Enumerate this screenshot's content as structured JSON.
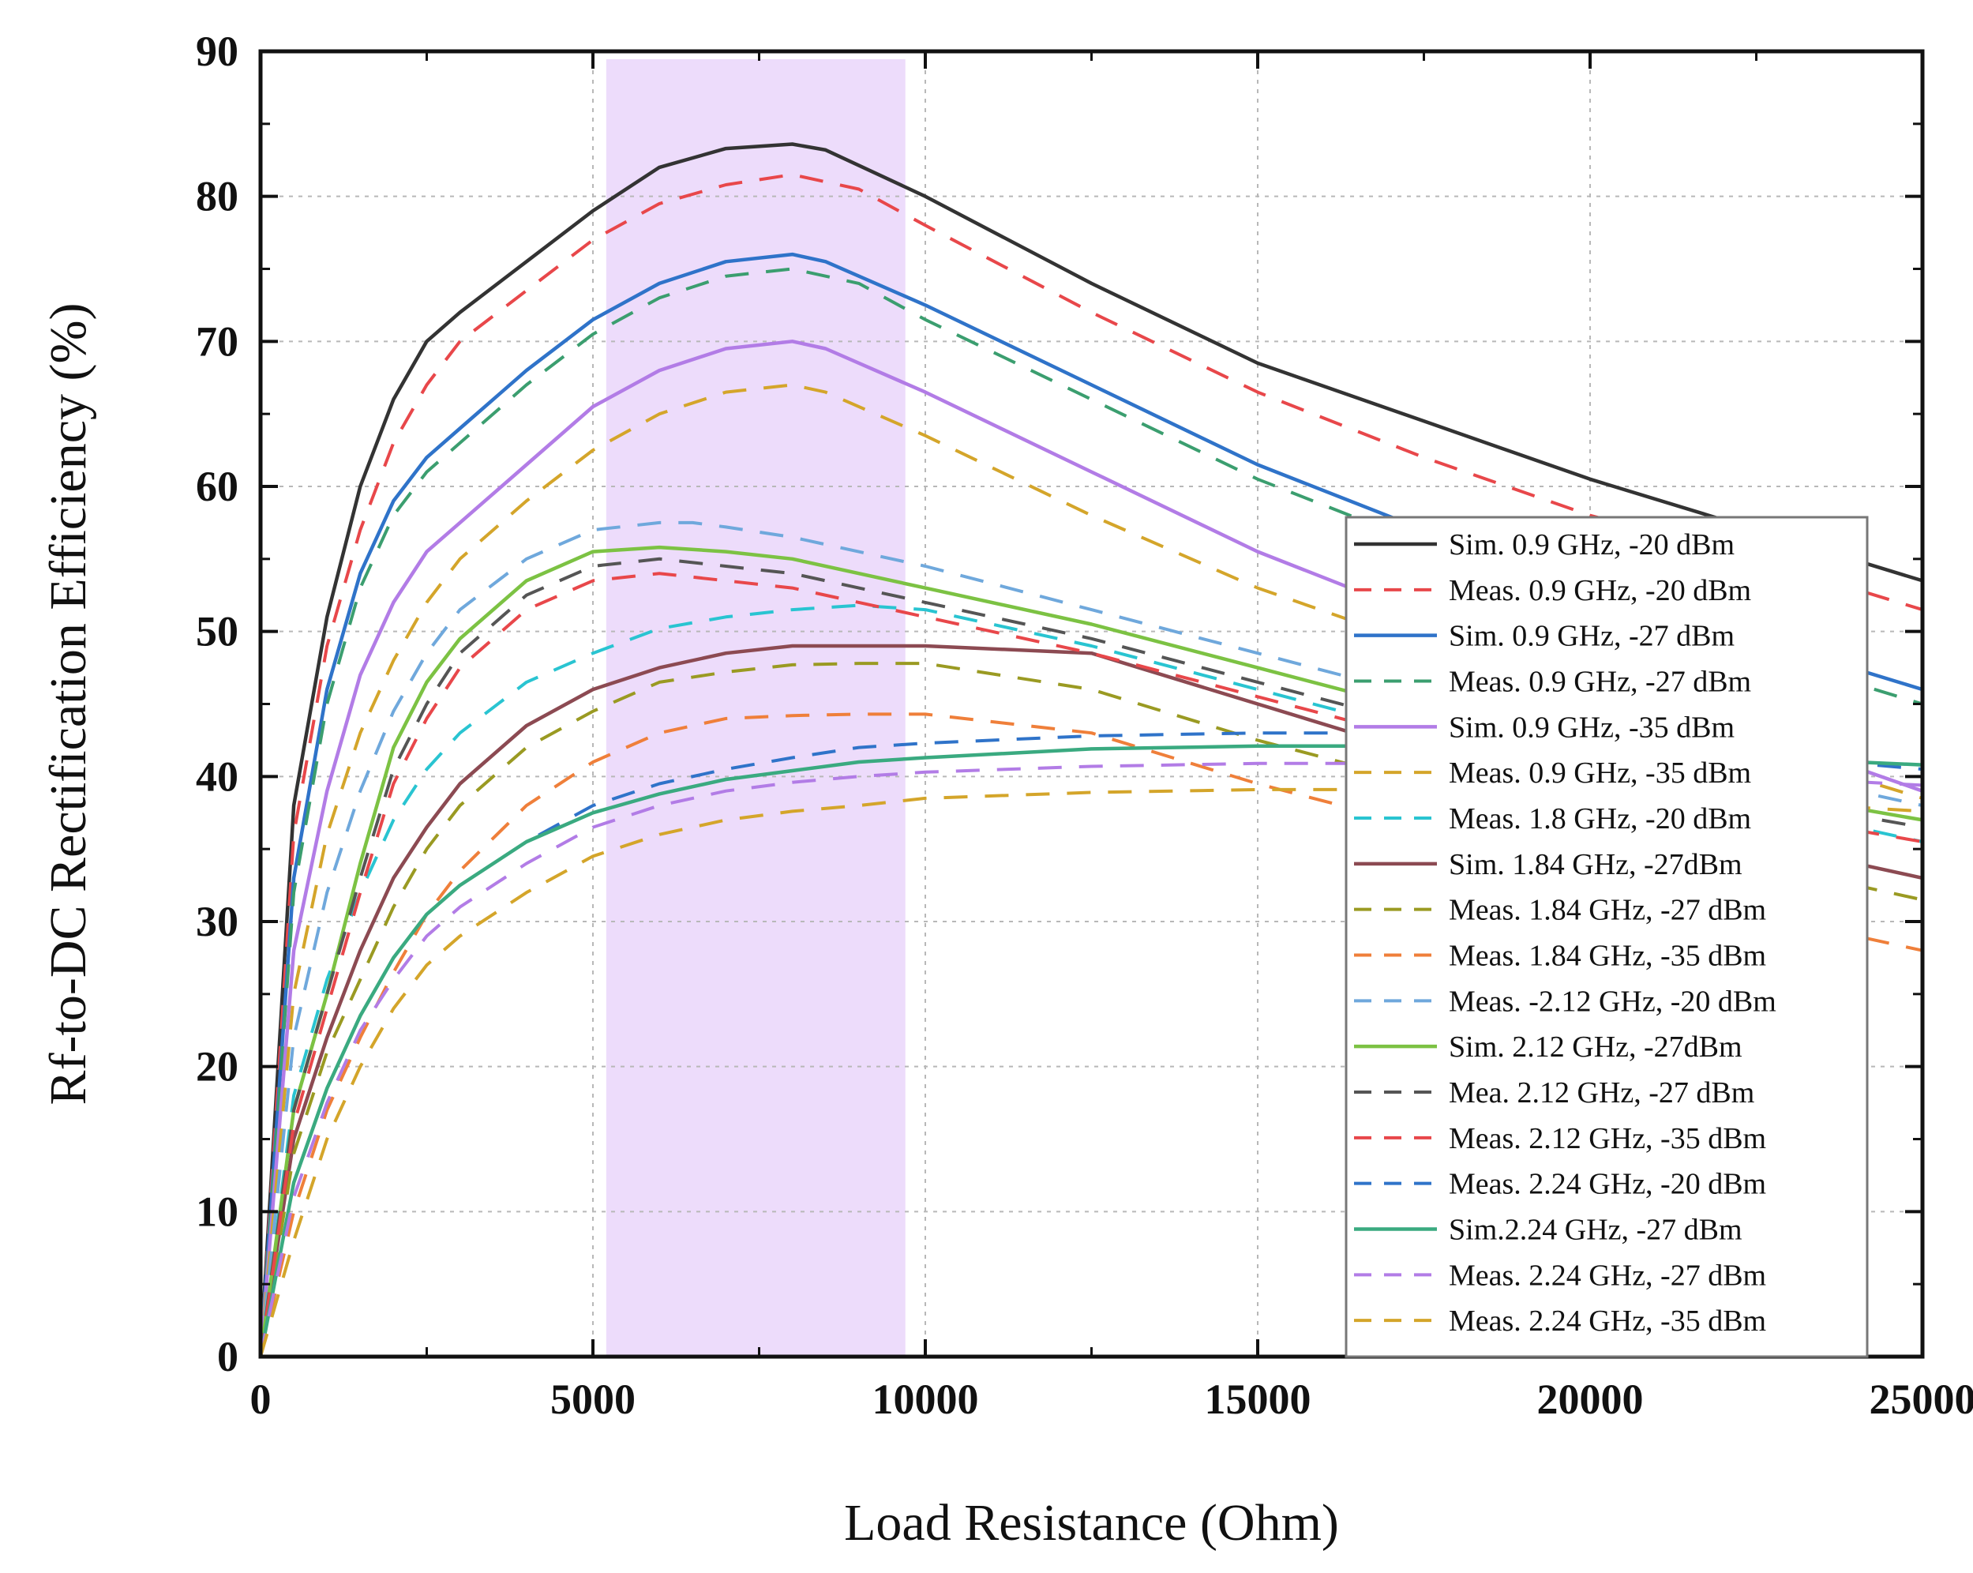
{
  "chart_data": {
    "type": "line",
    "title": "",
    "xlabel": "Load Resistance (Ohm)",
    "ylabel": "Rf-to-DC Rectification Efficiency (%)",
    "xlim": [
      0,
      25000
    ],
    "ylim": [
      0,
      90
    ],
    "xticks": [
      0,
      5000,
      10000,
      15000,
      20000,
      25000
    ],
    "yticks": [
      0,
      10,
      20,
      30,
      40,
      50,
      60,
      70,
      80,
      90
    ],
    "grid": true,
    "legend_position": "right",
    "highlight_band": {
      "x_start": 5200,
      "x_end": 9700,
      "color": "#eddcfb"
    },
    "series": [
      {
        "name": "Sim. 0.9 GHz, -20 dBm",
        "style": "solid",
        "color": "#333333",
        "x": [
          0,
          500,
          1000,
          1500,
          2000,
          2500,
          3000,
          4000,
          5000,
          6000,
          7000,
          8000,
          8500,
          10000,
          12500,
          15000,
          17500,
          20000,
          22500,
          25000
        ],
        "y": [
          0,
          38,
          51,
          60,
          66,
          70,
          72,
          75.5,
          79,
          82,
          83.3,
          83.6,
          83.2,
          80,
          74,
          68.5,
          64.5,
          60.5,
          57,
          53.5
        ]
      },
      {
        "name": "Meas. 0.9 GHz, -20 dBm",
        "style": "dashed",
        "color": "#e8474a",
        "x": [
          0,
          500,
          1000,
          1500,
          2000,
          2500,
          3000,
          4000,
          5000,
          6000,
          7000,
          8000,
          9000,
          10000,
          12500,
          15000,
          17500,
          20000,
          22500,
          25000
        ],
        "y": [
          0,
          36,
          49,
          57,
          63,
          67,
          70,
          73.5,
          77,
          79.5,
          80.8,
          81.5,
          80.5,
          78,
          72,
          66.5,
          62,
          58,
          55,
          51.5
        ]
      },
      {
        "name": "Sim. 0.9 GHz, -27 dBm",
        "style": "solid",
        "color": "#2f73c9",
        "x": [
          0,
          500,
          1000,
          1500,
          2000,
          2500,
          3000,
          4000,
          5000,
          6000,
          7000,
          8000,
          8500,
          10000,
          12500,
          15000,
          17500,
          20000,
          22500,
          25000
        ],
        "y": [
          0,
          33,
          46,
          54,
          59,
          62,
          64,
          68,
          71.5,
          74,
          75.5,
          76,
          75.5,
          72.5,
          67,
          61.5,
          57,
          53,
          49.5,
          46
        ]
      },
      {
        "name": "Meas. 0.9 GHz, -27 dBm",
        "style": "dashed",
        "color": "#3b9e6f",
        "x": [
          0,
          500,
          1000,
          1500,
          2000,
          2500,
          3000,
          4000,
          5000,
          6000,
          7000,
          8000,
          9000,
          10000,
          12500,
          15000,
          17500,
          20000,
          22500,
          25000
        ],
        "y": [
          0,
          32,
          45,
          53,
          58,
          61,
          63,
          67,
          70.5,
          73,
          74.5,
          75,
          74,
          71.5,
          66,
          60.5,
          56,
          52,
          48.5,
          45
        ]
      },
      {
        "name": "Sim. 0.9 GHz, -35 dBm",
        "style": "solid",
        "color": "#b27ce6",
        "x": [
          0,
          500,
          1000,
          1500,
          2000,
          2500,
          3000,
          4000,
          5000,
          6000,
          7000,
          8000,
          8500,
          10000,
          12500,
          15000,
          17500,
          20000,
          22500,
          25000
        ],
        "y": [
          0,
          28,
          39,
          47,
          52,
          55.5,
          57.5,
          61.5,
          65.5,
          68,
          69.5,
          70,
          69.5,
          66.5,
          61,
          55.5,
          51,
          47,
          43,
          39
        ]
      },
      {
        "name": "Meas. 0.9 GHz, -35 dBm",
        "style": "dashed",
        "color": "#d4a52a",
        "x": [
          0,
          500,
          1000,
          1500,
          2000,
          2500,
          3000,
          4000,
          5000,
          6000,
          7000,
          8000,
          8500,
          10000,
          12500,
          15000,
          17500,
          20000,
          22500,
          25000
        ],
        "y": [
          0,
          25,
          36,
          43,
          48,
          52,
          55,
          59,
          62.5,
          65,
          66.5,
          67,
          66.5,
          63.5,
          58,
          53,
          49,
          45.5,
          42,
          38.5
        ]
      },
      {
        "name": "Meas. 1.8 GHz, -20 dBm",
        "style": "dashed",
        "color": "#29c4d1",
        "x": [
          0,
          500,
          1000,
          1500,
          2000,
          2500,
          3000,
          4000,
          5000,
          6000,
          7000,
          8000,
          9000,
          10000,
          12500,
          15000,
          17500,
          20000,
          22500,
          25000
        ],
        "y": [
          0,
          18,
          26,
          32,
          37,
          40.5,
          43,
          46.5,
          48.5,
          50.2,
          51,
          51.5,
          51.8,
          51.5,
          49,
          46,
          43,
          40.5,
          38,
          35.5
        ]
      },
      {
        "name": "Sim. 1.84 GHz, -27dBm",
        "style": "solid",
        "color": "#8c4a52",
        "x": [
          0,
          500,
          1000,
          1500,
          2000,
          2500,
          3000,
          4000,
          5000,
          6000,
          7000,
          8000,
          9000,
          10000,
          12500,
          15000,
          17500,
          20000,
          22500,
          25000
        ],
        "y": [
          0,
          15,
          22,
          28,
          33,
          36.5,
          39.5,
          43.5,
          46,
          47.5,
          48.5,
          49,
          49,
          49,
          48.5,
          45,
          41.5,
          38.5,
          35.5,
          33
        ]
      },
      {
        "name": "Meas. 1.84 GHz, -27 dBm",
        "style": "dashed",
        "color": "#9a9a22",
        "x": [
          0,
          500,
          1000,
          1500,
          2000,
          2500,
          3000,
          4000,
          5000,
          6000,
          7000,
          8000,
          9000,
          10000,
          12500,
          15000,
          17500,
          20000,
          22500,
          25000
        ],
        "y": [
          0,
          14,
          21,
          26,
          31,
          35,
          38,
          42,
          44.5,
          46.5,
          47.2,
          47.7,
          47.8,
          47.8,
          46,
          42.5,
          39.5,
          36.5,
          34,
          31.5
        ]
      },
      {
        "name": "Meas. 1.84 GHz, -35 dBm",
        "style": "dashed",
        "color": "#ef7f3a",
        "x": [
          0,
          500,
          1000,
          1500,
          2000,
          2500,
          3000,
          4000,
          5000,
          6000,
          7000,
          8000,
          9000,
          10000,
          12500,
          15000,
          17500,
          20000,
          22500,
          25000
        ],
        "y": [
          0,
          10,
          17,
          22,
          26.5,
          30.5,
          33.5,
          38,
          41,
          43,
          44,
          44.2,
          44.3,
          44.3,
          43,
          39.5,
          36.5,
          33,
          30.5,
          28
        ]
      },
      {
        "name": "Meas. -2.12 GHz, -20 dBm",
        "style": "dashed",
        "color": "#6fa8dc",
        "x": [
          0,
          500,
          1000,
          1500,
          2000,
          2500,
          3000,
          4000,
          5000,
          6000,
          6500,
          7000,
          8000,
          10000,
          12500,
          15000,
          17500,
          20000,
          22500,
          25000
        ],
        "y": [
          0,
          22,
          32,
          39,
          44.5,
          48.5,
          51.5,
          55,
          57,
          57.5,
          57.5,
          57.2,
          56.5,
          54.5,
          51.5,
          48.5,
          45.5,
          43,
          40.5,
          38
        ]
      },
      {
        "name": "Sim. 2.12 GHz, -27dBm",
        "style": "solid",
        "color": "#7cc243",
        "x": [
          0,
          500,
          1000,
          1500,
          2000,
          2500,
          3000,
          4000,
          5000,
          6000,
          7000,
          8000,
          9000,
          10000,
          12500,
          15000,
          17500,
          20000,
          22500,
          25000
        ],
        "y": [
          0,
          17,
          25,
          34,
          42,
          46.5,
          49.5,
          53.5,
          55.5,
          55.8,
          55.5,
          55,
          54,
          53,
          50.5,
          47.5,
          44.5,
          41.5,
          39,
          37
        ]
      },
      {
        "name": "Mea. 2.12 GHz, -27 dBm",
        "style": "dashed",
        "color": "#555555",
        "x": [
          0,
          500,
          1000,
          1500,
          2000,
          2500,
          3000,
          4000,
          5000,
          6000,
          7000,
          8000,
          9000,
          10000,
          12500,
          15000,
          17500,
          20000,
          22500,
          25000
        ],
        "y": [
          0,
          17,
          25,
          33,
          40.5,
          45,
          48.5,
          52.5,
          54.5,
          55,
          54.5,
          54,
          53,
          52,
          49.5,
          46.5,
          43.5,
          40.5,
          38.5,
          36.5
        ]
      },
      {
        "name": "Meas. 2.12 GHz, -35 dBm",
        "style": "dashed",
        "color": "#e8474a",
        "x": [
          0,
          500,
          1000,
          1500,
          2000,
          2500,
          3000,
          4000,
          5000,
          6000,
          7000,
          8000,
          9000,
          10000,
          12500,
          15000,
          17500,
          20000,
          22500,
          25000
        ],
        "y": [
          0,
          16,
          24,
          32,
          39.5,
          44,
          47.5,
          51.5,
          53.5,
          54,
          53.5,
          53,
          52,
          51,
          48.5,
          45.5,
          42.5,
          39.5,
          37.5,
          35.5
        ]
      },
      {
        "name": "Meas. 2.24 GHz, -20 dBm",
        "style": "dashed",
        "color": "#2f73c9",
        "x": [
          0,
          500,
          1000,
          1500,
          2000,
          2500,
          3000,
          4000,
          5000,
          6000,
          7000,
          8000,
          9000,
          10000,
          12500,
          15000,
          17500,
          20000,
          22500,
          25000
        ],
        "y": [
          0,
          12,
          18.5,
          23.5,
          27.5,
          30.5,
          32.5,
          35.5,
          38,
          39.5,
          40.5,
          41.3,
          42,
          42.3,
          42.8,
          43,
          43,
          42.5,
          41.5,
          40.5
        ]
      },
      {
        "name": "Sim.2.24 GHz, -27 dBm",
        "style": "solid",
        "color": "#3aaa80",
        "x": [
          0,
          500,
          1000,
          1500,
          2000,
          2500,
          3000,
          4000,
          5000,
          6000,
          7000,
          8000,
          9000,
          10000,
          12500,
          15000,
          17500,
          20000,
          22500,
          25000
        ],
        "y": [
          0,
          12,
          18.5,
          23.5,
          27.5,
          30.5,
          32.5,
          35.5,
          37.5,
          38.8,
          39.8,
          40.4,
          41,
          41.3,
          41.9,
          42.1,
          42.1,
          41.8,
          41.3,
          40.8
        ]
      },
      {
        "name": "Meas. 2.24 GHz, -27 dBm",
        "style": "dashed",
        "color": "#b27ce6",
        "x": [
          0,
          500,
          1000,
          1500,
          2000,
          2500,
          3000,
          4000,
          5000,
          6000,
          7000,
          8000,
          9000,
          10000,
          12500,
          15000,
          17500,
          20000,
          22500,
          25000
        ],
        "y": [
          0,
          11,
          17.5,
          22.5,
          26,
          29,
          31,
          34,
          36.5,
          38,
          39,
          39.6,
          40,
          40.3,
          40.7,
          40.9,
          40.9,
          40.6,
          40,
          39.4
        ]
      },
      {
        "name": "Meas. 2.24 GHz, -35 dBm",
        "style": "dashed",
        "color": "#d4a52a",
        "x": [
          0,
          500,
          1000,
          1500,
          2000,
          2500,
          3000,
          4000,
          5000,
          6000,
          7000,
          8000,
          9000,
          10000,
          12500,
          15000,
          17500,
          20000,
          22500,
          25000
        ],
        "y": [
          0,
          8,
          15,
          20,
          24,
          27,
          29,
          32,
          34.5,
          36,
          37,
          37.6,
          38,
          38.5,
          38.9,
          39.1,
          39.1,
          38.8,
          38.3,
          37.6
        ]
      }
    ]
  }
}
